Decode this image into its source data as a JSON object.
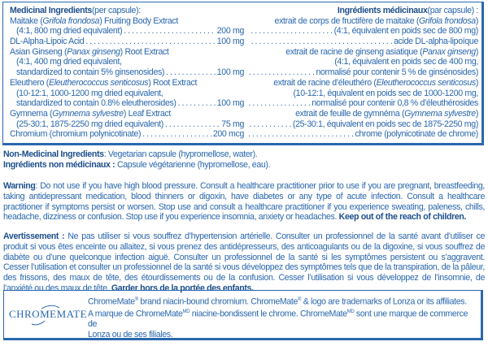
{
  "medicinal": {
    "en_heading": "Medicinal Ingredients",
    "en_heading_suffix": " (per capsule):",
    "fr_heading": "Ingrédients médicinaux",
    "fr_heading_suffix": " (par capsule) :",
    "rows": [
      {
        "en_pre": "Maitake (",
        "en_ital": "Grifola frondosa",
        "en_post": ") Fruiting Body Extract",
        "en_amount": "",
        "fr_pre": "extrait de corps de fructifère de maitake (",
        "fr_ital": "Grifola frondosa",
        "fr_post": ")",
        "indent": false,
        "fr_lead": false
      },
      {
        "en_pre": "(4:1, 800 mg dried equivalent)",
        "en_ital": "",
        "en_post": "",
        "en_amount": "200 mg",
        "fr_pre": "(4:1, équivalent en poids sec de 800 mg)",
        "fr_ital": "",
        "fr_post": "",
        "indent": true,
        "fr_lead": true
      },
      {
        "en_pre": "DL-Alpha-Lipoic Acid",
        "en_ital": "",
        "en_post": "",
        "en_amount": "100 mg",
        "fr_pre": "acide DL-alpha-lipoïque",
        "fr_ital": "",
        "fr_post": "",
        "indent": false,
        "fr_lead": true
      },
      {
        "en_pre": "Asian Ginseng (",
        "en_ital": "Panax ginseng",
        "en_post": ") Root Extract",
        "en_amount": "",
        "fr_pre": "extrait de racine de ginseng asiatique (",
        "fr_ital": "Panax ginseng",
        "fr_post": ")",
        "indent": false,
        "fr_lead": false
      },
      {
        "en_pre": "(4:1, 400 mg dried equivalent,",
        "en_ital": "",
        "en_post": "",
        "en_amount": "",
        "fr_pre": "(4:1, équivalent en poids sec de 400 mg,",
        "fr_ital": "",
        "fr_post": "",
        "indent": true,
        "fr_lead": false
      },
      {
        "en_pre": "standardized to contain 5% ginsenosides)",
        "en_ital": "",
        "en_post": "",
        "en_amount": "100 mg",
        "fr_pre": "normalisé pour contenir 5 % de ginsénosides)",
        "fr_ital": "",
        "fr_post": "",
        "indent": true,
        "fr_lead": true
      },
      {
        "en_pre": "Eleuthero (",
        "en_ital": "Eleutherococcus senticosus",
        "en_post": ") Root Extract",
        "en_amount": "",
        "fr_pre": "extrait de racine d’éleuthéro (",
        "fr_ital": "Eleutherococcus senticosus",
        "fr_post": ")",
        "indent": false,
        "fr_lead": false
      },
      {
        "en_pre": "(10-12:1, 1000-1200 mg dried equivalent,",
        "en_ital": "",
        "en_post": "",
        "en_amount": "",
        "fr_pre": "(10-12:1, équivalent en poids sec de 1000-1200 mg,",
        "fr_ital": "",
        "fr_post": "",
        "indent": true,
        "fr_lead": false
      },
      {
        "en_pre": "standardized to contain 0.8% eleutherosides)",
        "en_ital": "",
        "en_post": "",
        "en_amount": "100 mg",
        "fr_pre": "normalisé pour contenir 0,8 % d’éleuthérosides",
        "fr_ital": "",
        "fr_post": "",
        "indent": true,
        "fr_lead": true
      },
      {
        "en_pre": "Gymnema (",
        "en_ital": "Gymnema sylvestre",
        "en_post": ") Leaf Extract",
        "en_amount": "",
        "fr_pre": "extrait de feuille de gymnéma (",
        "fr_ital": "Gymnema sylvestre",
        "fr_post": ")",
        "indent": false,
        "fr_lead": false
      },
      {
        "en_pre": "(25-30:1, 1875-2250 mg dried equivalent)",
        "en_ital": "",
        "en_post": "",
        "en_amount": "75 mg",
        "fr_pre": "(25-30:1, équivalent en poids sec de 1875-2250 mg)",
        "fr_ital": "",
        "fr_post": "",
        "indent": true,
        "fr_lead": true
      },
      {
        "en_pre": "Chromium (chromium polynicotinate)",
        "en_ital": "",
        "en_post": "",
        "en_amount": "200 mcg",
        "fr_pre": "chrome (polynicotinate de chrome)",
        "fr_ital": "",
        "fr_post": "",
        "indent": false,
        "fr_lead": true
      }
    ]
  },
  "non_medicinal": {
    "en_label": "Non-Medicinal Ingredients",
    "en_text": ": Vegetarian capsule (hypromellose, water).",
    "fr_label": "Ingrédients non médicinaux :",
    "fr_text": " Capsule végétarienne (hypromellose, eau)."
  },
  "warning": {
    "label": "Warning",
    "text": ": Do not use if you have high blood pressure. Consult a healthcare practitioner prior to use if you are pregnant, breastfeeding, taking antidepressant medication, blood thinners or digoxin, have diabetes or any type of acute infection. Consult a healthcare practitioner if symptoms persist or worsen. Stop use and consult a healthcare practitioner if you experience sweating, paleness, chills, headache, dizziness or confusion. Stop use if you experience insomnia, anxiety or headaches. ",
    "bold_end": "Keep out of the reach of children."
  },
  "avertissement": {
    "label": "Avertissement :",
    "text": " Ne pas utiliser si vous souffrez d’hypertension artérielle. Consulter un professionnel de la santé avant d’utiliser ce produit si vous êtes enceinte ou allaitez, si vous prenez des antidépresseurs, des anticoagulants ou de la digoxine, si vous souffrez de diabète ou d’une quelconque infection aiguë. Consulter un professionnel de la santé si les symptômes persistent ou s’aggravent. Cesser l’utilisation et consulter un professionnel de la santé si vous développez des symptômes tels que de la transpiration, de la pâleur, des frissons, des maux de tête, des étourdissements ou de la confusion. Cesser l’utilisation si vous développez de l’insomnie, de l’anxiété ou des maux de tête. ",
    "bold_end": "Garder hors de la portée des enfants."
  },
  "chromemate": {
    "logo_text": "ChromeMate",
    "line1_a": "ChromeMate",
    "line1_sup": "®",
    "line1_b": " brand niacin-bound chromium. ChromeMate",
    "line1_sup2": "®",
    "line1_c": " & logo are trademarks of Lonza or its affiliates.",
    "line2_a": "A marque de ChromeMate",
    "line2_sup": "MD",
    "line2_b": " niacine-bondissent le  chrome. ChromeMate",
    "line2_sup2": "MD",
    "line2_c": " sont une marque de commerce de",
    "line3": "Lonza ou de ses filiales."
  }
}
